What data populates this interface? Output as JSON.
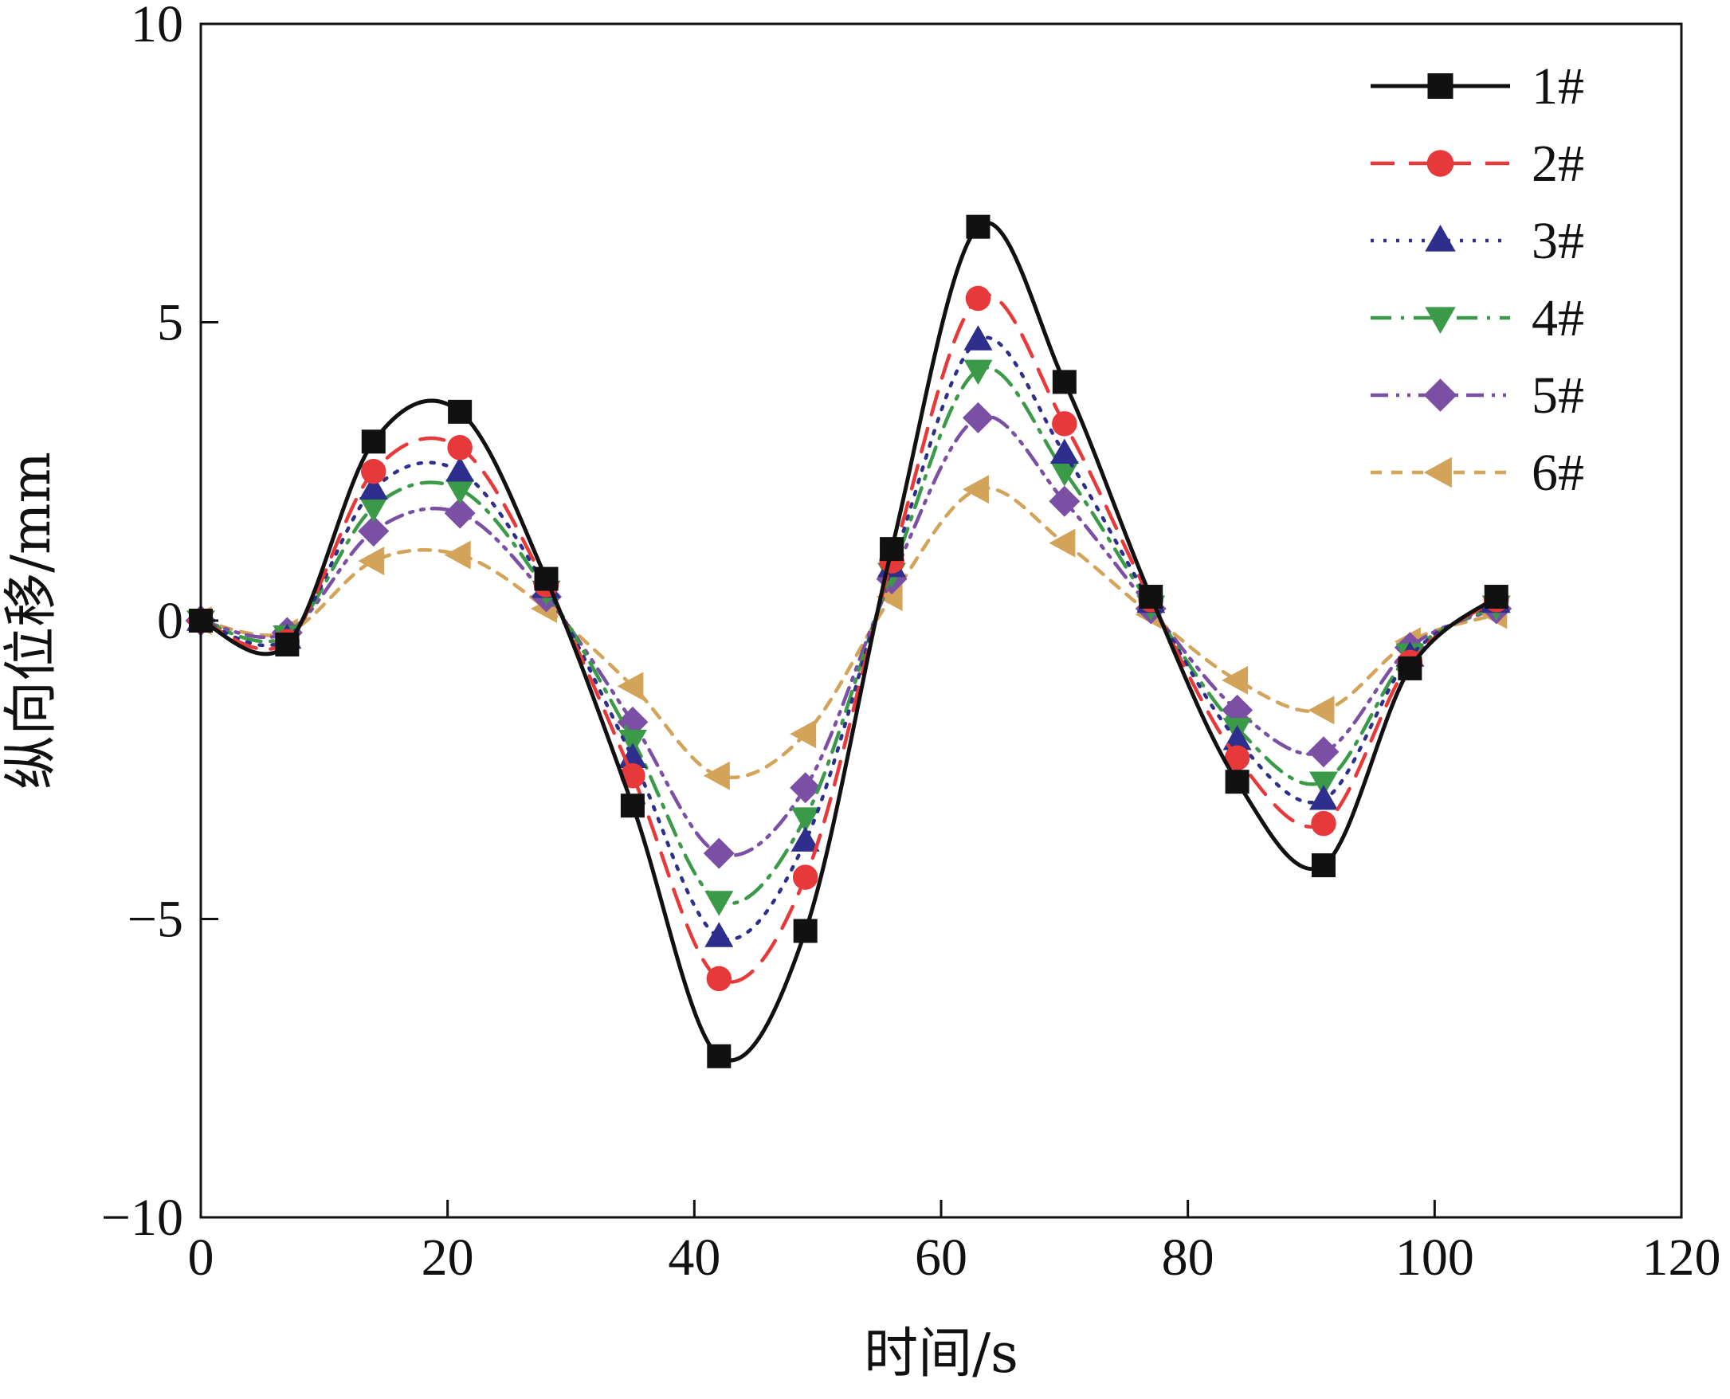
{
  "chart_data": {
    "type": "line",
    "title": "",
    "xlabel": "时间/s",
    "ylabel": "纵向位移/mm",
    "xlim": [
      0,
      120
    ],
    "ylim": [
      -10,
      10
    ],
    "xticks": [
      0,
      20,
      40,
      60,
      80,
      100,
      120
    ],
    "yticks": [
      -10,
      -5,
      0,
      5,
      10
    ],
    "xtick_labels": [
      "0",
      "20",
      "40",
      "60",
      "80",
      "100",
      "120"
    ],
    "ytick_labels": [
      "−10",
      "−5",
      "0",
      "5",
      "10"
    ],
    "grid": false,
    "legend_position": "top-right",
    "x": [
      0,
      7,
      14,
      21,
      28,
      35,
      42,
      49,
      56,
      63,
      70,
      77,
      84,
      91,
      98,
      105
    ],
    "series": [
      {
        "name": "1#",
        "color": "#111111",
        "dash": "solid",
        "marker": "square",
        "values": [
          0,
          -0.4,
          3.0,
          3.5,
          0.7,
          -3.1,
          -7.3,
          -5.2,
          1.2,
          6.6,
          4.0,
          0.4,
          -2.7,
          -4.1,
          -0.8,
          0.4
        ]
      },
      {
        "name": "2#",
        "color": "#e8393a",
        "dash": "dashed",
        "marker": "circle",
        "values": [
          0,
          -0.35,
          2.5,
          2.9,
          0.6,
          -2.6,
          -6.0,
          -4.3,
          1.0,
          5.4,
          3.3,
          0.35,
          -2.3,
          -3.4,
          -0.7,
          0.35
        ]
      },
      {
        "name": "3#",
        "color": "#2e2f8c",
        "dash": "dotted",
        "marker": "triangle-up",
        "values": [
          0,
          -0.3,
          2.2,
          2.5,
          0.55,
          -2.3,
          -5.3,
          -3.7,
          0.9,
          4.7,
          2.8,
          0.3,
          -2.0,
          -3.0,
          -0.6,
          0.3
        ]
      },
      {
        "name": "4#",
        "color": "#3a9a48",
        "dash": "dash-dot",
        "marker": "triangle-down",
        "values": [
          0,
          -0.25,
          1.9,
          2.2,
          0.5,
          -2.0,
          -4.7,
          -3.3,
          0.8,
          4.2,
          2.5,
          0.25,
          -1.8,
          -2.7,
          -0.55,
          0.25
        ]
      },
      {
        "name": "5#",
        "color": "#7b4fa3",
        "dash": "dash-dot-dot",
        "marker": "diamond",
        "values": [
          0,
          -0.2,
          1.5,
          1.8,
          0.4,
          -1.7,
          -3.9,
          -2.8,
          0.7,
          3.4,
          2.0,
          0.2,
          -1.5,
          -2.2,
          -0.45,
          0.2
        ]
      },
      {
        "name": "6#",
        "color": "#d4a35a",
        "dash": "short-dash",
        "marker": "triangle-left",
        "values": [
          0,
          -0.2,
          1.0,
          1.1,
          0.2,
          -1.1,
          -2.6,
          -1.9,
          0.4,
          2.2,
          1.3,
          0.1,
          -1.0,
          -1.5,
          -0.35,
          0.1
        ]
      }
    ]
  }
}
